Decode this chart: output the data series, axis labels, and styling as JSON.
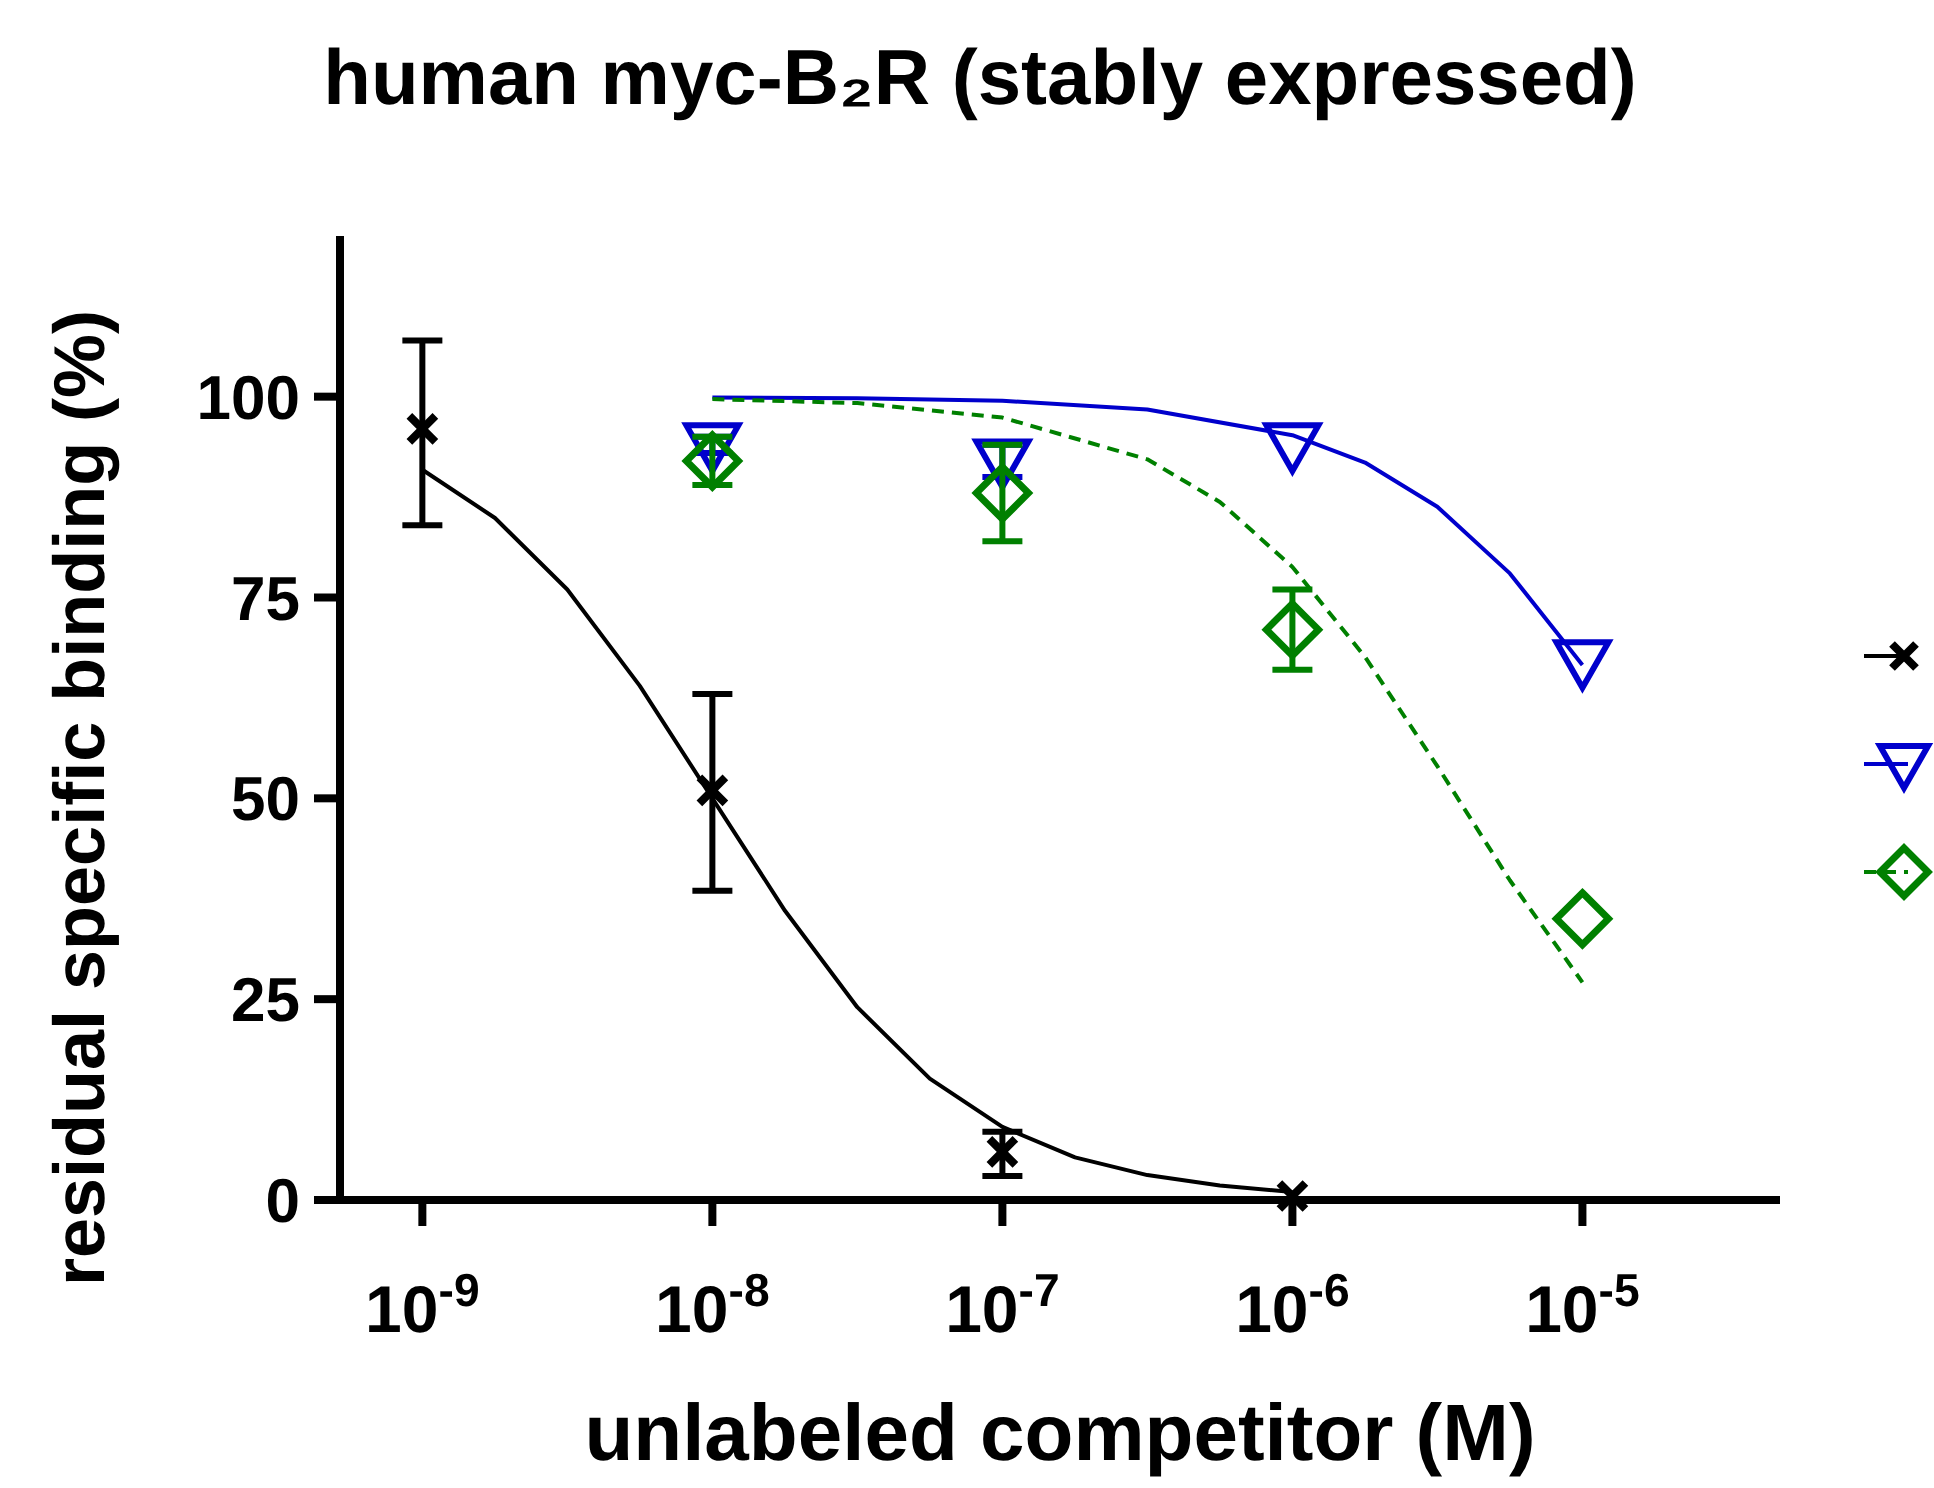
{
  "chart_data": {
    "type": "scatter",
    "title": "human myc-B₂R (stably expressed)",
    "xlabel": "unlabeled competitor (M)",
    "ylabel": "residual specific binding (%)",
    "log": "x",
    "xlim": [
      5.2e-10,
      4.8e-05
    ],
    "ylim": [
      0,
      120
    ],
    "xticks": [
      {
        "value": 1e-09,
        "label": "10$^{-9}$"
      },
      {
        "value": 1e-08,
        "label": "10$^{-8}$"
      },
      {
        "value": 1e-07,
        "label": "10$^{-7}$"
      },
      {
        "value": 1e-06,
        "label": "10$^{-6}$"
      },
      {
        "value": 1e-05,
        "label": "10$^{-5}$"
      }
    ],
    "yticks": [
      0,
      25,
      50,
      75,
      100
    ],
    "grid": false,
    "series": [
      {
        "color": "#000000",
        "marker": "cross",
        "x": [
          1e-09,
          1e-08,
          1e-07,
          1e-06
        ],
        "values": [
          96,
          51,
          6,
          0.5
        ],
        "errors": [
          [
            84,
            107
          ],
          [
            38.5,
            63
          ],
          [
            3,
            8.5
          ],
          null
        ]
      },
      {
        "color": "#0000cc",
        "marker": "triangle",
        "x": [
          1e-08,
          1e-07,
          1e-06,
          1e-05
        ],
        "values": [
          94,
          92,
          94,
          67
        ],
        "errors": [
          1,
          2,
          null,
          null
        ]
      },
      {
        "color": "#008000",
        "marker": "diamond",
        "x": [
          1e-08,
          1e-07,
          1e-06,
          1e-05
        ],
        "values": [
          92,
          88,
          71,
          35
        ],
        "errors": [
          3,
          6,
          5,
          null
        ]
      },
      {
        "type": "line",
        "color": "#000000",
        "line_style": "solid",
        "x": [
          1e-09,
          1.78e-09,
          3.16e-09,
          5.62e-09,
          1e-08,
          1.78e-08,
          3.16e-08,
          5.62e-08,
          1e-07,
          1.78e-07,
          3.16e-07,
          5.62e-07,
          1e-06
        ],
        "values": [
          90.9,
          84.9,
          76.0,
          64.0,
          50,
          36.0,
          24.0,
          15.1,
          9.1,
          5.3,
          3.1,
          1.8,
          1.0
        ]
      },
      {
        "type": "line",
        "color": "#0000cc",
        "line_style": "solid",
        "x": [
          1e-08,
          3.16e-08,
          1e-07,
          3.16e-07,
          1e-06,
          1.78e-06,
          3.16e-06,
          5.62e-06,
          1e-05
        ],
        "values": [
          99.9,
          99.8,
          99.5,
          98.4,
          95.2,
          91.8,
          86.3,
          78.0,
          66.6
        ]
      },
      {
        "type": "line",
        "color": "#008000",
        "line_style": "dashed",
        "x": [
          1e-08,
          3.16e-08,
          1e-07,
          3.16e-07,
          5.62e-07,
          1e-06,
          1.78e-06,
          3.16e-06,
          5.62e-06,
          1e-05
        ],
        "values": [
          99.7,
          99.2,
          97.4,
          92.2,
          86.9,
          78.8,
          67.6,
          54.0,
          39.8,
          27.1
        ]
      }
    ]
  }
}
